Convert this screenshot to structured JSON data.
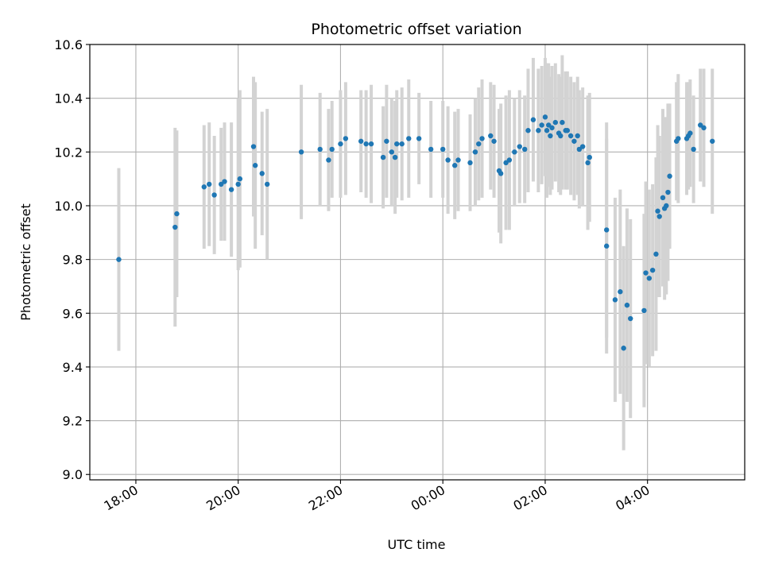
{
  "chart_data": {
    "type": "scatter",
    "title": "Photometric offset variation",
    "xlabel": "UTC time",
    "ylabel": "Photometric offset",
    "x_axis_kind": "time",
    "xlim": [
      "17:06",
      "05:54"
    ],
    "ylim": [
      8.98,
      10.6
    ],
    "x_ticks": [
      "18:00",
      "20:00",
      "22:00",
      "00:00",
      "02:00",
      "04:00"
    ],
    "y_ticks": [
      9.0,
      9.2,
      9.4,
      9.6,
      9.8,
      10.0,
      10.2,
      10.4,
      10.6
    ],
    "y_tick_labels": [
      "9.0",
      "9.2",
      "9.4",
      "9.6",
      "9.8",
      "10.0",
      "10.2",
      "10.4",
      "10.6"
    ],
    "grid": true,
    "colors": {
      "point": "#1f77b4",
      "errorbar": "#d3d3d3",
      "grid": "#b0b0b0"
    },
    "series": [
      {
        "x": [
          "17:40",
          "18:46",
          "18:48",
          "19:20",
          "19:26",
          "19:32",
          "19:40",
          "19:44",
          "19:52",
          "20:00",
          "20:02",
          "20:18",
          "20:20",
          "20:28",
          "20:34",
          "21:14",
          "21:36",
          "21:46",
          "21:50",
          "22:00",
          "22:06",
          "22:24",
          "22:30",
          "22:36",
          "22:50",
          "22:54",
          "23:00",
          "23:04",
          "23:06",
          "23:12",
          "23:20",
          "23:32",
          "23:46",
          "24:00",
          "24:06",
          "24:14",
          "24:18",
          "24:32",
          "24:38",
          "24:42",
          "24:46",
          "24:56",
          "25:00",
          "25:06",
          "25:08",
          "25:14",
          "25:18",
          "25:24",
          "25:30",
          "25:36",
          "25:40",
          "25:46",
          "25:52",
          "25:56",
          "26:00",
          "26:02",
          "26:04",
          "26:06",
          "26:08",
          "26:12",
          "26:16",
          "26:18",
          "26:20",
          "26:24",
          "26:26",
          "26:30",
          "26:34",
          "26:38",
          "26:40",
          "26:44",
          "26:50",
          "26:52",
          "27:12",
          "27:12",
          "27:22",
          "27:28",
          "27:32",
          "27:36",
          "27:40",
          "27:56",
          "27:58",
          "28:02",
          "28:06",
          "28:10",
          "28:12",
          "28:14",
          "28:18",
          "28:20",
          "28:22",
          "28:24",
          "28:26",
          "28:34",
          "28:36",
          "28:46",
          "28:48",
          "28:50",
          "28:54",
          "29:02",
          "29:06",
          "29:16"
        ],
        "y": [
          9.8,
          9.92,
          9.97,
          10.07,
          10.08,
          10.04,
          10.08,
          10.09,
          10.06,
          10.08,
          10.1,
          10.22,
          10.15,
          10.12,
          10.08,
          10.2,
          10.21,
          10.17,
          10.21,
          10.23,
          10.25,
          10.24,
          10.23,
          10.23,
          10.18,
          10.24,
          10.2,
          10.18,
          10.23,
          10.23,
          10.25,
          10.25,
          10.21,
          10.21,
          10.17,
          10.15,
          10.17,
          10.16,
          10.2,
          10.23,
          10.25,
          10.26,
          10.24,
          10.13,
          10.12,
          10.16,
          10.17,
          10.2,
          10.22,
          10.21,
          10.28,
          10.32,
          10.28,
          10.3,
          10.33,
          10.28,
          10.3,
          10.26,
          10.29,
          10.31,
          10.27,
          10.26,
          10.31,
          10.28,
          10.28,
          10.26,
          10.24,
          10.26,
          10.21,
          10.22,
          10.16,
          10.18,
          9.91,
          9.85,
          9.65,
          9.68,
          9.47,
          9.63,
          9.58,
          9.61,
          9.75,
          9.73,
          9.76,
          9.82,
          9.98,
          9.96,
          10.03,
          9.99,
          10.0,
          10.05,
          10.11,
          10.24,
          10.25,
          10.25,
          10.26,
          10.27,
          10.21,
          10.3,
          10.29,
          10.24
        ],
        "error": [
          0.34,
          0.37,
          0.31,
          0.23,
          0.23,
          0.22,
          0.21,
          0.22,
          0.25,
          0.32,
          0.33,
          0.26,
          0.31,
          0.23,
          0.28,
          0.25,
          0.21,
          0.19,
          0.18,
          0.2,
          0.21,
          0.19,
          0.2,
          0.22,
          0.19,
          0.21,
          0.2,
          0.21,
          0.2,
          0.21,
          0.22,
          0.17,
          0.18,
          0.18,
          0.2,
          0.2,
          0.19,
          0.18,
          0.2,
          0.21,
          0.22,
          0.2,
          0.21,
          0.23,
          0.26,
          0.25,
          0.26,
          0.2,
          0.21,
          0.2,
          0.23,
          0.23,
          0.23,
          0.22,
          0.22,
          0.25,
          0.23,
          0.22,
          0.23,
          0.22,
          0.22,
          0.22,
          0.25,
          0.22,
          0.22,
          0.22,
          0.22,
          0.22,
          0.22,
          0.22,
          0.25,
          0.24,
          0.4,
          0.4,
          0.38,
          0.38,
          0.38,
          0.36,
          0.37,
          0.36,
          0.34,
          0.33,
          0.32,
          0.36,
          0.32,
          0.3,
          0.33,
          0.34,
          0.33,
          0.33,
          0.27,
          0.22,
          0.24,
          0.21,
          0.2,
          0.2,
          0.2,
          0.21,
          0.22,
          0.27
        ]
      }
    ]
  }
}
